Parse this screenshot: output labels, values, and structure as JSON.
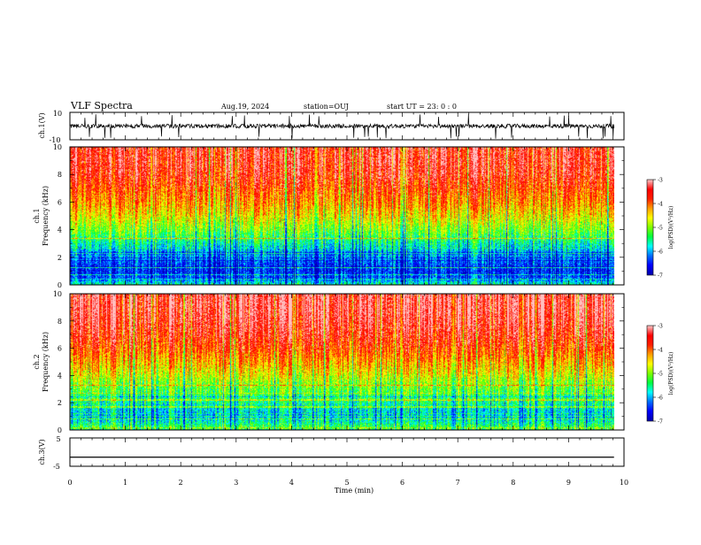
{
  "header": {
    "title": "VLF Spectra",
    "date": "Aug.19, 2024",
    "station": "station=OUJ",
    "start": "start UT =  23: 0  : 0"
  },
  "colors": {
    "colormap": [
      "#000000",
      "#0000b0",
      "#0000ff",
      "#0070ff",
      "#00ffff",
      "#00ff40",
      "#7fff00",
      "#ffff00",
      "#ffa000",
      "#ff2000",
      "#ff0000",
      "#ffc0c0",
      "#ffffff"
    ]
  },
  "chart_data": [
    {
      "type": "line",
      "panel": "waveform-ch1",
      "ylabel": "ch.1(V)",
      "ylim": [
        -10,
        10
      ],
      "yticks": [
        "10",
        "-10"
      ],
      "baseline": 0,
      "note_values": "noisy waveform fluctuating around 0 V with occasional spikes to -10 V"
    },
    {
      "type": "heatmap",
      "panel": "spectrogram-ch1",
      "ylabel": "ch.1\nFrequency (kHz)",
      "ylim": [
        0,
        10
      ],
      "yticks": [
        "0",
        "2",
        "4",
        "6",
        "8",
        "10"
      ],
      "colorbar": {
        "label": "log(PSD)(V²/Hz)",
        "ticks": [
          "-3",
          "-4",
          "-5",
          "-6",
          "-7"
        ],
        "range": [
          -7,
          -3
        ]
      },
      "profile_khz": [
        0,
        0.5,
        1,
        1.5,
        2,
        2.5,
        3,
        3.5,
        4,
        5,
        6,
        7,
        8,
        9,
        10
      ],
      "profile_log_psd": [
        -5.5,
        -6.3,
        -6.5,
        -6.4,
        -6.1,
        -5.9,
        -5.6,
        -5.3,
        -5.0,
        -4.5,
        -4.1,
        -3.8,
        -3.5,
        -3.4,
        -3.4
      ]
    },
    {
      "type": "heatmap",
      "panel": "spectrogram-ch2",
      "ylabel": "ch.2\nFrequency (kHz)",
      "ylim": [
        0,
        10
      ],
      "yticks": [
        "0",
        "2",
        "4",
        "6",
        "8",
        "10"
      ],
      "colorbar": {
        "label": "log(PSD)(V²/Hz)",
        "ticks": [
          "-3",
          "-4",
          "-5",
          "-6",
          "-7"
        ],
        "range": [
          -7,
          -3
        ]
      },
      "profile_khz": [
        0,
        0.5,
        1,
        1.5,
        2,
        2.5,
        3,
        3.5,
        4,
        5,
        6,
        7,
        8,
        9,
        10
      ],
      "profile_log_psd": [
        -5.0,
        -5.5,
        -5.9,
        -5.8,
        -5.5,
        -5.3,
        -5.1,
        -4.9,
        -4.6,
        -4.2,
        -3.8,
        -3.5,
        -3.3,
        -3.2,
        -3.2
      ]
    },
    {
      "type": "line",
      "panel": "waveform-ch3",
      "ylabel": "ch.3(V)",
      "ylim": [
        -5,
        5
      ],
      "yticks": [
        "5",
        "-5"
      ],
      "x": [
        0,
        9.82
      ],
      "y": [
        -1.8,
        -1.8
      ]
    }
  ],
  "xaxis": {
    "label": "Time  (min)",
    "ticks": [
      "0",
      "1",
      "2",
      "3",
      "4",
      "5",
      "6",
      "7",
      "8",
      "9",
      "10"
    ],
    "range": [
      0,
      10
    ],
    "data_end": 9.82
  }
}
